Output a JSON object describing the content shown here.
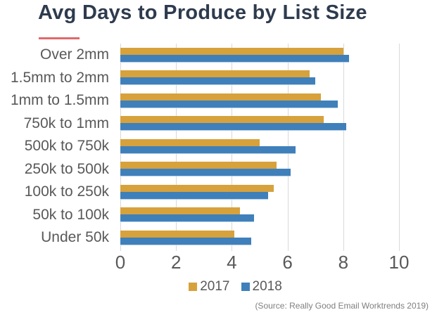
{
  "chart_data": {
    "type": "bar",
    "orientation": "horizontal",
    "title": "Avg Days to Produce by List Size",
    "categories": [
      "Over 2mm",
      "1.5mm to 2mm",
      "1mm to 1.5mm",
      "750k to 1mm",
      "500k to 750k",
      "250k to 500k",
      "100k to 250k",
      "50k to 100k",
      "Under 50k"
    ],
    "series": [
      {
        "name": "2017",
        "color": "#D7A13C",
        "values": [
          8.0,
          6.8,
          7.2,
          7.3,
          5.0,
          5.6,
          5.5,
          4.3,
          4.1
        ]
      },
      {
        "name": "2018",
        "color": "#3F80BB",
        "values": [
          8.2,
          7.0,
          7.8,
          8.1,
          6.3,
          6.1,
          5.3,
          4.8,
          4.7
        ]
      }
    ],
    "xlabel": "",
    "ylabel": "",
    "xlim": [
      0,
      10
    ],
    "x_ticks": [
      0,
      2,
      4,
      6,
      8,
      10
    ],
    "grid": "vertical",
    "legend_position": "bottom"
  },
  "source": "(Source: Really Good Email Worktrends 2019)",
  "colors": {
    "title_text": "#2E3B4E",
    "accent_underline": "#E0696B",
    "axis_text": "#595959",
    "gridline": "#D9D9D9",
    "source_text": "#7F7F7F",
    "background": "#FFFFFF"
  }
}
